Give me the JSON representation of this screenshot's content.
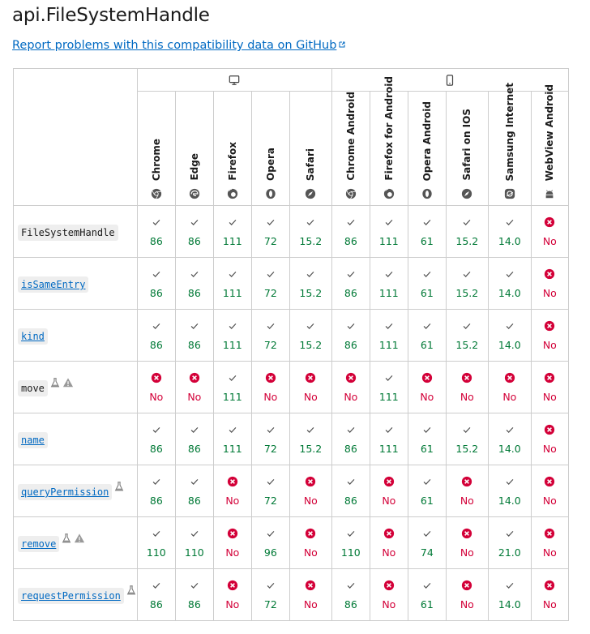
{
  "page": {
    "title": "api.FileSystemHandle",
    "report_link": "Report problems with this compatibility data on GitHub"
  },
  "platforms": [
    {
      "name": "desktop",
      "icon": "desktop-icon",
      "span": 5
    },
    {
      "name": "mobile",
      "icon": "mobile-icon",
      "span": 6
    }
  ],
  "browsers": [
    {
      "name": "Chrome",
      "icon": "chrome-icon"
    },
    {
      "name": "Edge",
      "icon": "edge-icon"
    },
    {
      "name": "Firefox",
      "icon": "firefox-icon"
    },
    {
      "name": "Opera",
      "icon": "opera-icon"
    },
    {
      "name": "Safari",
      "icon": "safari-icon"
    },
    {
      "name": "Chrome Android",
      "icon": "chrome-icon"
    },
    {
      "name": "Firefox for Android",
      "icon": "firefox-icon"
    },
    {
      "name": "Opera Android",
      "icon": "opera-icon"
    },
    {
      "name": "Safari on IOS",
      "icon": "safari-icon"
    },
    {
      "name": "Samsung Internet",
      "icon": "samsung-internet-icon"
    },
    {
      "name": "WebView Android",
      "icon": "android-icon"
    }
  ],
  "features": [
    {
      "name": "FileSystemHandle",
      "link": false,
      "flags": [],
      "support": [
        "86",
        "86",
        "111",
        "72",
        "15.2",
        "86",
        "111",
        "61",
        "15.2",
        "14.0",
        "No"
      ]
    },
    {
      "name": "isSameEntry",
      "link": true,
      "flags": [],
      "support": [
        "86",
        "86",
        "111",
        "72",
        "15.2",
        "86",
        "111",
        "61",
        "15.2",
        "14.0",
        "No"
      ]
    },
    {
      "name": "kind",
      "link": true,
      "flags": [],
      "support": [
        "86",
        "86",
        "111",
        "72",
        "15.2",
        "86",
        "111",
        "61",
        "15.2",
        "14.0",
        "No"
      ]
    },
    {
      "name": "move",
      "link": false,
      "flags": [
        "experimental-icon",
        "warning-icon"
      ],
      "support": [
        "No",
        "No",
        "111",
        "No",
        "No",
        "No",
        "111",
        "No",
        "No",
        "No",
        "No"
      ]
    },
    {
      "name": "name",
      "link": true,
      "flags": [],
      "support": [
        "86",
        "86",
        "111",
        "72",
        "15.2",
        "86",
        "111",
        "61",
        "15.2",
        "14.0",
        "No"
      ]
    },
    {
      "name": "queryPermission",
      "link": true,
      "flags": [
        "experimental-icon"
      ],
      "support": [
        "86",
        "86",
        "No",
        "72",
        "No",
        "86",
        "No",
        "61",
        "No",
        "14.0",
        "No"
      ]
    },
    {
      "name": "remove",
      "link": true,
      "flags": [
        "experimental-icon",
        "warning-icon"
      ],
      "support": [
        "110",
        "110",
        "No",
        "96",
        "No",
        "110",
        "No",
        "74",
        "No",
        "21.0",
        "No"
      ]
    },
    {
      "name": "requestPermission",
      "link": true,
      "flags": [
        "experimental-icon"
      ],
      "support": [
        "86",
        "86",
        "No",
        "72",
        "No",
        "86",
        "No",
        "61",
        "No",
        "14.0",
        "No"
      ]
    }
  ],
  "colors": {
    "yes": "#007936",
    "no": "#d30038",
    "link": "#0069c2"
  }
}
